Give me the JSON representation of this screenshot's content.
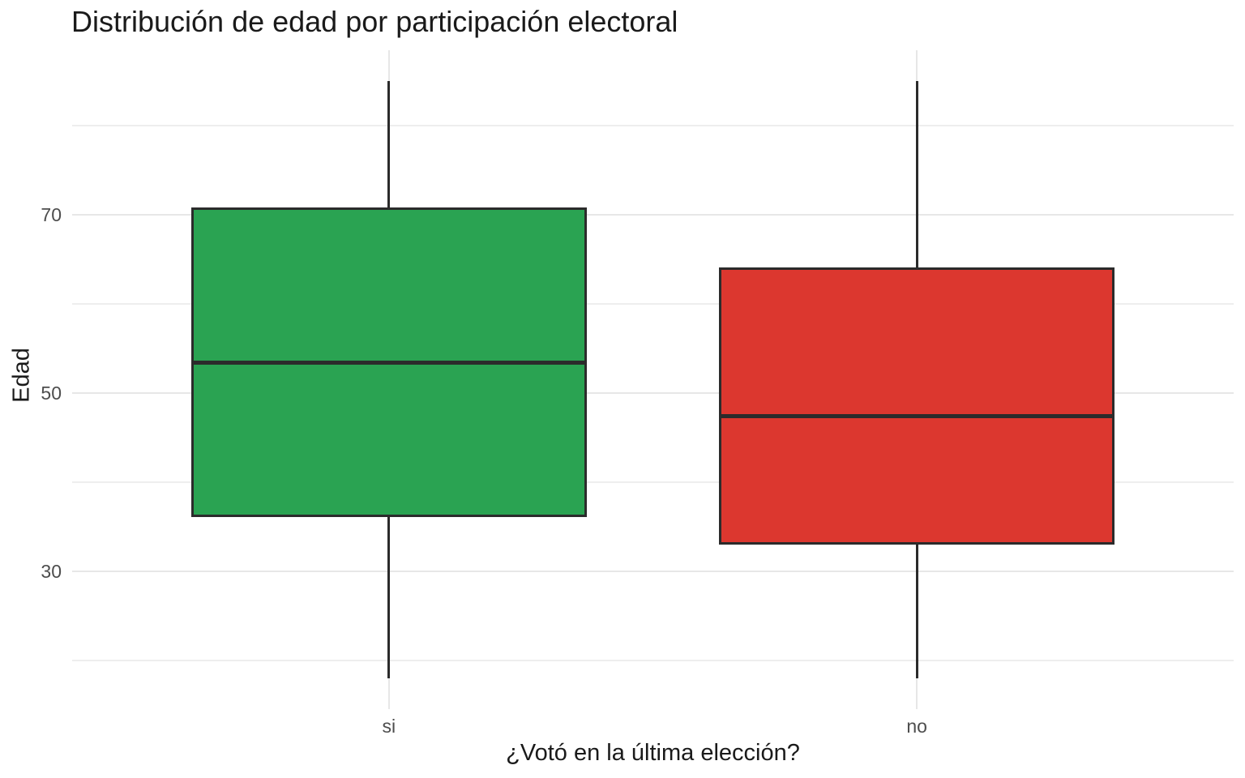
{
  "chart_data": {
    "type": "boxplot",
    "title": "Distribución de edad por participación electoral",
    "xlabel": "¿Votó en la última elección?",
    "ylabel": "Edad",
    "categories": [
      "si",
      "no"
    ],
    "series": [
      {
        "name": "si",
        "color": "#2aa352",
        "min": 18,
        "q1": 36.1,
        "median": 53.4,
        "q3": 70.8,
        "max": 85
      },
      {
        "name": "no",
        "color": "#dc372f",
        "min": 18,
        "q1": 33.0,
        "median": 47.4,
        "q3": 64.1,
        "max": 85
      }
    ],
    "y_ticks": [
      30,
      50,
      70
    ],
    "y_minor_ticks": [
      20,
      40,
      60,
      80
    ],
    "ylim": [
      14.5,
      88.5
    ],
    "grid": true,
    "legend_position": "none",
    "style": {
      "box_border_color": "#2b2b2b",
      "major_grid_color": "#e7e7e7",
      "minor_grid_color": "#eeeeee",
      "tick_label_color": "#4d4d4d",
      "title_color": "#1a1a1a",
      "background_color": "#ffffff"
    }
  }
}
